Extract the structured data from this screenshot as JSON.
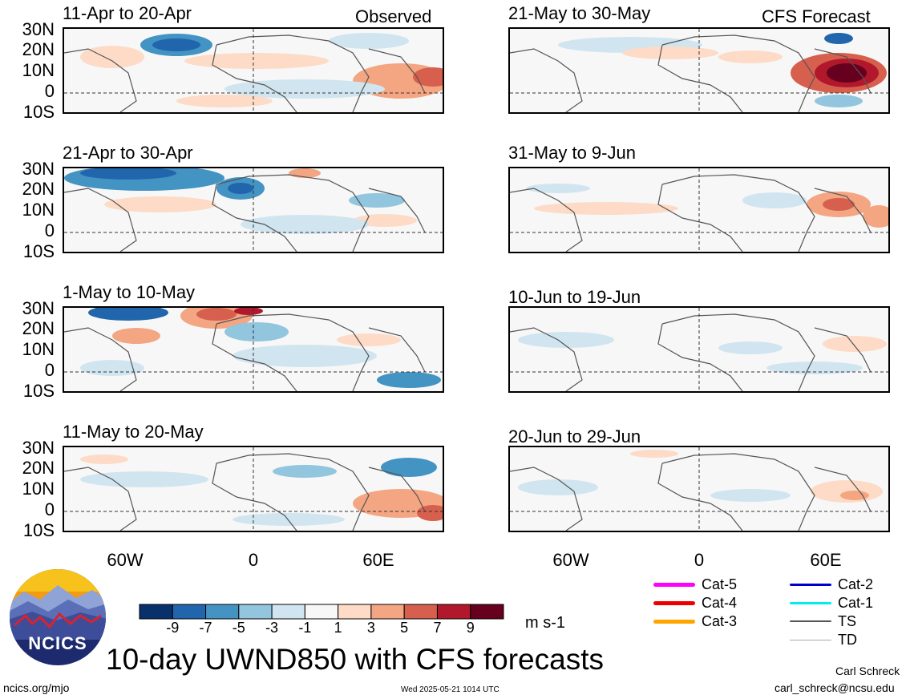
{
  "left_column": {
    "header": "Observed",
    "panels": [
      {
        "title": "11-Apr to 20-Apr"
      },
      {
        "title": "21-Apr to 30-Apr"
      },
      {
        "title": "1-May to 10-May"
      },
      {
        "title": "11-May to 20-May"
      }
    ]
  },
  "right_column": {
    "header": "CFS Forecast",
    "panels": [
      {
        "title": "21-May to 30-May"
      },
      {
        "title": "31-May to 9-Jun"
      },
      {
        "title": "10-Jun to 19-Jun"
      },
      {
        "title": "20-Jun to 29-Jun"
      }
    ]
  },
  "lat_labels": [
    "30N",
    "20N",
    "10N",
    "0",
    "10S"
  ],
  "lon_labels": [
    "60W",
    "0",
    "60E"
  ],
  "colorbar": {
    "colors": [
      "#08306b",
      "#2166ac",
      "#4393c3",
      "#92c5de",
      "#d1e5f0",
      "#f7f7f7",
      "#fddbc7",
      "#f4a582",
      "#d6604d",
      "#b2182b",
      "#67001f"
    ],
    "labels": [
      "-9",
      "-7",
      "-5",
      "-3",
      "-1",
      "1",
      "3",
      "5",
      "7",
      "9"
    ],
    "unit": "m s-1"
  },
  "track_legend": [
    {
      "label": "Cat-5",
      "color": "#ff00ff"
    },
    {
      "label": "Cat-4",
      "color": "#ee0000"
    },
    {
      "label": "Cat-3",
      "color": "#ffa500"
    },
    {
      "label": "Cat-2",
      "color": "#0000cc"
    },
    {
      "label": "Cat-1",
      "color": "#00eeee"
    },
    {
      "label": "TS",
      "color": "#555555"
    },
    {
      "label": "TD",
      "color": "#aaaaaa"
    }
  ],
  "logo_text": "NCICS",
  "main_title": "10-day UWND850 with CFS forecasts",
  "footer": {
    "url": "ncics.org/mjo",
    "timestamp": "Wed 2025-05-21 1014 UTC",
    "author": "Carl Schreck",
    "email": "carl_schreck@ncsu.edu"
  }
}
